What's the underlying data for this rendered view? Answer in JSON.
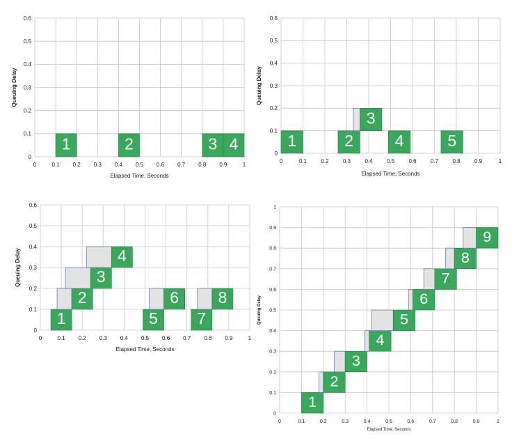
{
  "chart_data": [
    {
      "type": "bar",
      "xlabel": "Elapsed Time, Seconds",
      "ylabel": "Queuing Delay",
      "xlim": [
        0,
        1
      ],
      "ylim": [
        0,
        0.6
      ],
      "x_ticks": [
        "0",
        "0.1",
        "0.2",
        "0.3",
        "0.4",
        "0.5",
        "0.6",
        "0.7",
        "0.8",
        "0.9",
        "1"
      ],
      "y_ticks": [
        "0",
        "0.1",
        "0.2",
        "0.3",
        "0.4",
        "0.5",
        "0.6"
      ],
      "grid": true,
      "colors": {
        "packet": "#3aa85c",
        "wait": "#e3e3e3",
        "wait_border": "#6a7fb0"
      },
      "packets": [
        {
          "label": "1",
          "arrival": 0.1,
          "start": 0.1,
          "delay": 0
        },
        {
          "label": "2",
          "arrival": 0.4,
          "start": 0.4,
          "delay": 0
        },
        {
          "label": "3",
          "arrival": 0.8,
          "start": 0.8,
          "delay": 0
        },
        {
          "label": "4",
          "arrival": 0.9,
          "start": 0.9,
          "delay": 0
        }
      ]
    },
    {
      "type": "bar",
      "xlabel": "Elapsed Time, Seconds",
      "ylabel": "Queuing Delay",
      "xlim": [
        0,
        1
      ],
      "ylim": [
        0,
        0.6
      ],
      "x_ticks": [
        "0",
        "0.1",
        "0.2",
        "0.3",
        "0.4",
        "0.5",
        "0.6",
        "0.7",
        "0.8",
        "0.9",
        "1"
      ],
      "y_ticks": [
        "0",
        "0.1",
        "0.2",
        "0.3",
        "0.4",
        "0.5",
        "0.6"
      ],
      "grid": true,
      "colors": {
        "packet": "#3aa85c",
        "wait": "#e3e3e3",
        "wait_border": "#6a7fb0"
      },
      "packets": [
        {
          "label": "1",
          "arrival": 0.0,
          "start": 0.0,
          "delay": 0
        },
        {
          "label": "2",
          "arrival": 0.26,
          "start": 0.26,
          "delay": 0
        },
        {
          "label": "3",
          "arrival": 0.33,
          "start": 0.36,
          "delay": 0.1
        },
        {
          "label": "4",
          "arrival": 0.49,
          "start": 0.49,
          "delay": 0
        },
        {
          "label": "5",
          "arrival": 0.73,
          "start": 0.73,
          "delay": 0
        }
      ]
    },
    {
      "type": "bar",
      "xlabel": "Elapsed Time, Seconds",
      "ylabel": "Queuing Delay",
      "xlim": [
        0,
        1
      ],
      "ylim": [
        0,
        0.6
      ],
      "x_ticks": [
        "0",
        "0.1",
        "0.2",
        "0.3",
        "0.4",
        "0.5",
        "0.6",
        "0.7",
        "0.8",
        "0.9",
        "1"
      ],
      "y_ticks": [
        "0",
        "0.1",
        "0.2",
        "0.3",
        "0.4",
        "0.5",
        "0.6"
      ],
      "grid": true,
      "colors": {
        "packet": "#3aa85c",
        "wait": "#e3e3e3",
        "wait_border": "#6a7fb0"
      },
      "packets": [
        {
          "label": "1",
          "arrival": 0.05,
          "start": 0.05,
          "delay": 0
        },
        {
          "label": "2",
          "arrival": 0.08,
          "start": 0.15,
          "delay": 0.1
        },
        {
          "label": "3",
          "arrival": 0.12,
          "start": 0.24,
          "delay": 0.2
        },
        {
          "label": "4",
          "arrival": 0.22,
          "start": 0.34,
          "delay": 0.3
        },
        {
          "label": "5",
          "arrival": 0.49,
          "start": 0.49,
          "delay": 0
        },
        {
          "label": "6",
          "arrival": 0.52,
          "start": 0.59,
          "delay": 0.1
        },
        {
          "label": "7",
          "arrival": 0.72,
          "start": 0.72,
          "delay": 0
        },
        {
          "label": "8",
          "arrival": 0.75,
          "start": 0.82,
          "delay": 0.1
        }
      ]
    },
    {
      "type": "bar",
      "xlabel": "Elapsed Time, Seconds",
      "ylabel": "Queuing Delay",
      "xlim": [
        0,
        1
      ],
      "ylim": [
        0,
        1
      ],
      "x_ticks": [
        "0",
        "0.1",
        "0.2",
        "0.3",
        "0.4",
        "0.5",
        "0.6",
        "0.7",
        "0.8",
        "0.9",
        "1"
      ],
      "y_ticks": [
        "0",
        "0.1",
        "0.2",
        "0.3",
        "0.4",
        "0.5",
        "0.6",
        "0.7",
        "0.8",
        "0.9",
        "1"
      ],
      "grid": true,
      "colors": {
        "packet": "#3aa85c",
        "wait": "#e3e3e3",
        "wait_border": "#6a7fb0"
      },
      "packets": [
        {
          "label": "1",
          "arrival": 0.1,
          "start": 0.1,
          "delay": 0
        },
        {
          "label": "2",
          "arrival": 0.18,
          "start": 0.2,
          "delay": 0.1
        },
        {
          "label": "3",
          "arrival": 0.25,
          "start": 0.3,
          "delay": 0.2
        },
        {
          "label": "4",
          "arrival": 0.39,
          "start": 0.41,
          "delay": 0.3
        },
        {
          "label": "5",
          "arrival": 0.42,
          "start": 0.52,
          "delay": 0.4
        },
        {
          "label": "6",
          "arrival": 0.59,
          "start": 0.61,
          "delay": 0.5
        },
        {
          "label": "7",
          "arrival": 0.66,
          "start": 0.71,
          "delay": 0.6
        },
        {
          "label": "8",
          "arrival": 0.76,
          "start": 0.8,
          "delay": 0.7
        },
        {
          "label": "9",
          "arrival": 0.84,
          "start": 0.9,
          "delay": 0.8
        }
      ]
    }
  ]
}
